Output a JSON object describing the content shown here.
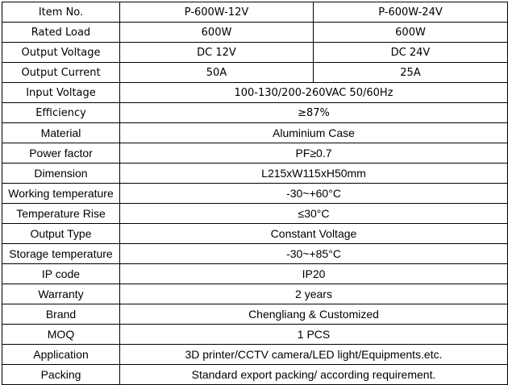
{
  "rows": [
    {
      "label": "Item No.",
      "values": [
        "P-600W-12V",
        "P-600W-24V"
      ],
      "font": "v"
    },
    {
      "label": "Rated Load",
      "values": [
        "600W",
        "600W"
      ],
      "font": "v"
    },
    {
      "label": "Output Voltage",
      "values": [
        "DC 12V",
        "DC 24V"
      ],
      "font": "v"
    },
    {
      "label": "Output Current",
      "values": [
        "50A",
        "25A"
      ],
      "font": "v"
    },
    {
      "label": "Input Voltage",
      "values": [
        "100-130/200-260VAC 50/60Hz"
      ],
      "font": "v"
    },
    {
      "label": "Efficiency",
      "values": [
        "≥87%"
      ],
      "font": "v"
    },
    {
      "label": "Material",
      "values": [
        "Aluminium Case"
      ],
      "font": "a"
    },
    {
      "label": "Power factor",
      "values": [
        "PF≥0.7"
      ],
      "font": "a"
    },
    {
      "label": "Dimension",
      "values": [
        "L215xW115xH50mm"
      ],
      "font": "a"
    },
    {
      "label": "Working temperature",
      "values": [
        "-30~+60°C"
      ],
      "font": "a"
    },
    {
      "label": "Temperature Rise",
      "values": [
        "≤30°C"
      ],
      "font": "a"
    },
    {
      "label": "Output Type",
      "values": [
        "Constant Voltage"
      ],
      "font": "a"
    },
    {
      "label": "Storage temperature",
      "values": [
        "-30~+85°C"
      ],
      "font": "a"
    },
    {
      "label": "IP code",
      "values": [
        "IP20"
      ],
      "font": "a"
    },
    {
      "label": "Warranty",
      "values": [
        "2 years"
      ],
      "font": "a"
    },
    {
      "label": "Brand",
      "values": [
        "Chengliang & Customized"
      ],
      "font": "a"
    },
    {
      "label": "MOQ",
      "values": [
        "1 PCS"
      ],
      "font": "a"
    },
    {
      "label": "Application",
      "values": [
        "3D printer/CCTV camera/LED light/Equipments.etc."
      ],
      "font": "a"
    },
    {
      "label": "Packing",
      "values": [
        "Standard export packing/ according requirement."
      ],
      "font": "a"
    }
  ]
}
